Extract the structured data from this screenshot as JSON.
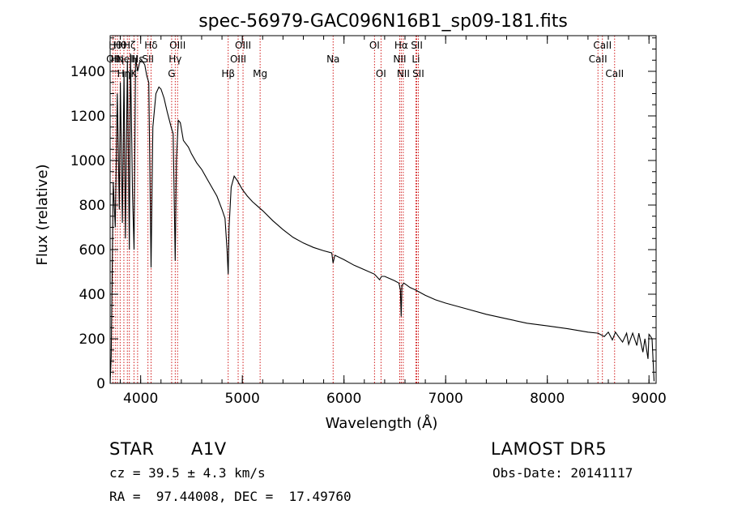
{
  "chart_data": {
    "type": "line",
    "title": "spec-56979-GAC096N16B1_sp09-181.fits",
    "xlabel": "Wavelength (Å)",
    "ylabel": "Flux (relative)",
    "xlim": [
      3700,
      9070
    ],
    "ylim": [
      0,
      1560
    ],
    "xticks": [
      4000,
      5000,
      6000,
      7000,
      8000,
      9000
    ],
    "yticks": [
      0,
      200,
      400,
      600,
      800,
      1000,
      1200,
      1400
    ],
    "grid": false,
    "series": [
      {
        "color": "#000000",
        "x": [
          3700,
          3710,
          3730,
          3750,
          3770,
          3790,
          3800,
          3820,
          3836,
          3850,
          3870,
          3889,
          3900,
          3920,
          3935,
          3950,
          3970,
          3990,
          4010,
          4040,
          4060,
          4080,
          4102,
          4120,
          4150,
          4180,
          4200,
          4230,
          4260,
          4300,
          4320,
          4340,
          4352,
          4370,
          4390,
          4420,
          4470,
          4500,
          4550,
          4600,
          4650,
          4700,
          4750,
          4800,
          4830,
          4850,
          4861,
          4870,
          4890,
          4920,
          4950,
          5000,
          5050,
          5100,
          5150,
          5200,
          5300,
          5400,
          5500,
          5600,
          5700,
          5800,
          5880,
          5893,
          5910,
          6000,
          6100,
          6200,
          6300,
          6350,
          6370,
          6400,
          6450,
          6500,
          6540,
          6555,
          6563,
          6570,
          6590,
          6650,
          6700,
          6800,
          6900,
          7000,
          7200,
          7400,
          7600,
          7800,
          8000,
          8200,
          8400,
          8500,
          8560,
          8600,
          8640,
          8670,
          8700,
          8740,
          8780,
          8800,
          8840,
          8880,
          8900,
          8940,
          8960,
          8990,
          9000,
          9010,
          9030,
          9050
        ],
        "y": [
          0,
          120,
          900,
          700,
          1300,
          780,
          1350,
          720,
          1400,
          650,
          1450,
          600,
          1480,
          850,
          600,
          1460,
          1400,
          1440,
          1450,
          1430,
          1380,
          1350,
          520,
          1150,
          1300,
          1330,
          1320,
          1280,
          1220,
          1150,
          1120,
          550,
          1000,
          1180,
          1170,
          1090,
          1060,
          1030,
          990,
          960,
          920,
          880,
          840,
          780,
          740,
          600,
          490,
          700,
          880,
          930,
          910,
          870,
          840,
          815,
          795,
          775,
          730,
          690,
          655,
          630,
          610,
          595,
          585,
          540,
          575,
          555,
          530,
          510,
          490,
          465,
          480,
          480,
          470,
          460,
          450,
          420,
          300,
          440,
          450,
          430,
          420,
          395,
          375,
          360,
          335,
          310,
          290,
          270,
          258,
          245,
          230,
          225,
          210,
          230,
          195,
          230,
          210,
          185,
          225,
          175,
          225,
          170,
          225,
          140,
          200,
          110,
          220,
          215,
          200,
          10
        ]
      }
    ],
    "line_markers": [
      {
        "wavelength": 3727,
        "label": "OII",
        "row": 2
      },
      {
        "wavelength": 3750,
        "label": "Hθ",
        "row": 1
      },
      {
        "wavelength": 3771,
        "label": "Hη",
        "row": 2
      },
      {
        "wavelength": 3798,
        "label": "Hθ",
        "row": 1
      },
      {
        "wavelength": 3835,
        "label": "Hη",
        "row": 3
      },
      {
        "wavelength": 3869,
        "label": "NeIII",
        "row": 2
      },
      {
        "wavelength": 3889,
        "label": "Hζ",
        "row": 1
      },
      {
        "wavelength": 3934,
        "label": "K",
        "row": 3
      },
      {
        "wavelength": 3970,
        "label": "Hε",
        "row": 2
      },
      {
        "wavelength": 4072,
        "label": "SII",
        "row": 2
      },
      {
        "wavelength": 4102,
        "label": "Hδ",
        "row": 1
      },
      {
        "wavelength": 4305,
        "label": "G",
        "row": 3
      },
      {
        "wavelength": 4340,
        "label": "Hγ",
        "row": 2
      },
      {
        "wavelength": 4363,
        "label": "OIII",
        "row": 1
      },
      {
        "wavelength": 4861,
        "label": "Hβ",
        "row": 3
      },
      {
        "wavelength": 4959,
        "label": "OIII",
        "row": 2
      },
      {
        "wavelength": 5007,
        "label": "OIII",
        "row": 1
      },
      {
        "wavelength": 5175,
        "label": "Mg",
        "row": 3
      },
      {
        "wavelength": 5893,
        "label": "Na",
        "row": 2
      },
      {
        "wavelength": 6300,
        "label": "OI",
        "row": 1
      },
      {
        "wavelength": 6364,
        "label": "OI",
        "row": 3
      },
      {
        "wavelength": 6548,
        "label": "NII",
        "row": 2
      },
      {
        "wavelength": 6563,
        "label": "Hα",
        "row": 1
      },
      {
        "wavelength": 6583,
        "label": "NII",
        "row": 3
      },
      {
        "wavelength": 6707,
        "label": "Li",
        "row": 2
      },
      {
        "wavelength": 6716,
        "label": "SII",
        "row": 1
      },
      {
        "wavelength": 6731,
        "label": "SII",
        "row": 3
      },
      {
        "wavelength": 8498,
        "label": "CaII",
        "row": 2
      },
      {
        "wavelength": 8542,
        "label": "CaII",
        "row": 1
      },
      {
        "wavelength": 8662,
        "label": "CaII",
        "row": 3
      }
    ],
    "marker_color": "#cc0000"
  },
  "info": {
    "object_class": "STAR",
    "subclass": "A1V",
    "survey": "LAMOST DR5",
    "cz": "cz = 39.5 ± 4.3 km/s",
    "obs_date": "Obs-Date: 20141117",
    "coords": "RA =  97.44008, DEC =  17.49760"
  }
}
